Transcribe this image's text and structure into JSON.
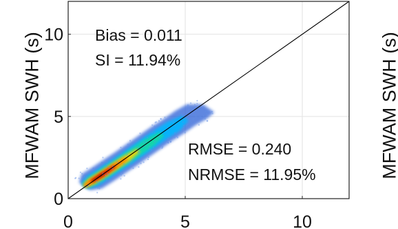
{
  "chart_data": {
    "type": "heatmap",
    "title": "",
    "xlabel": "",
    "ylabel": "MFWAM SWH (s)",
    "xlim": [
      0,
      12
    ],
    "ylim": [
      0,
      12
    ],
    "xticks": [
      "0",
      "5",
      "10"
    ],
    "yticks": [
      "0",
      "5",
      "10"
    ],
    "grid": true,
    "reference_line": {
      "x": [
        0,
        12
      ],
      "y": [
        0,
        12
      ]
    },
    "density_ridge": {
      "x": [
        0.7,
        1.0,
        1.5,
        2.0,
        2.5,
        3.0,
        3.5,
        4.0,
        4.5,
        5.0,
        5.5,
        6.0
      ],
      "y": [
        0.75,
        1.05,
        1.5,
        1.98,
        2.45,
        2.95,
        3.45,
        3.95,
        4.4,
        4.9,
        5.3,
        5.5
      ]
    },
    "colormap": [
      "#2b5fd6",
      "#00b7ff",
      "#16d9a0",
      "#ffd200",
      "#ff7a00",
      "#d60000",
      "#7a0000"
    ],
    "annotations": {
      "bias": "Bias = 0.011",
      "si": "SI = 11.94%",
      "rmse": "RMSE = 0.240",
      "nrmse": "NRMSE = 11.95%"
    },
    "adjacent_panel_ylabel": "MFWAM SWH (s)"
  }
}
